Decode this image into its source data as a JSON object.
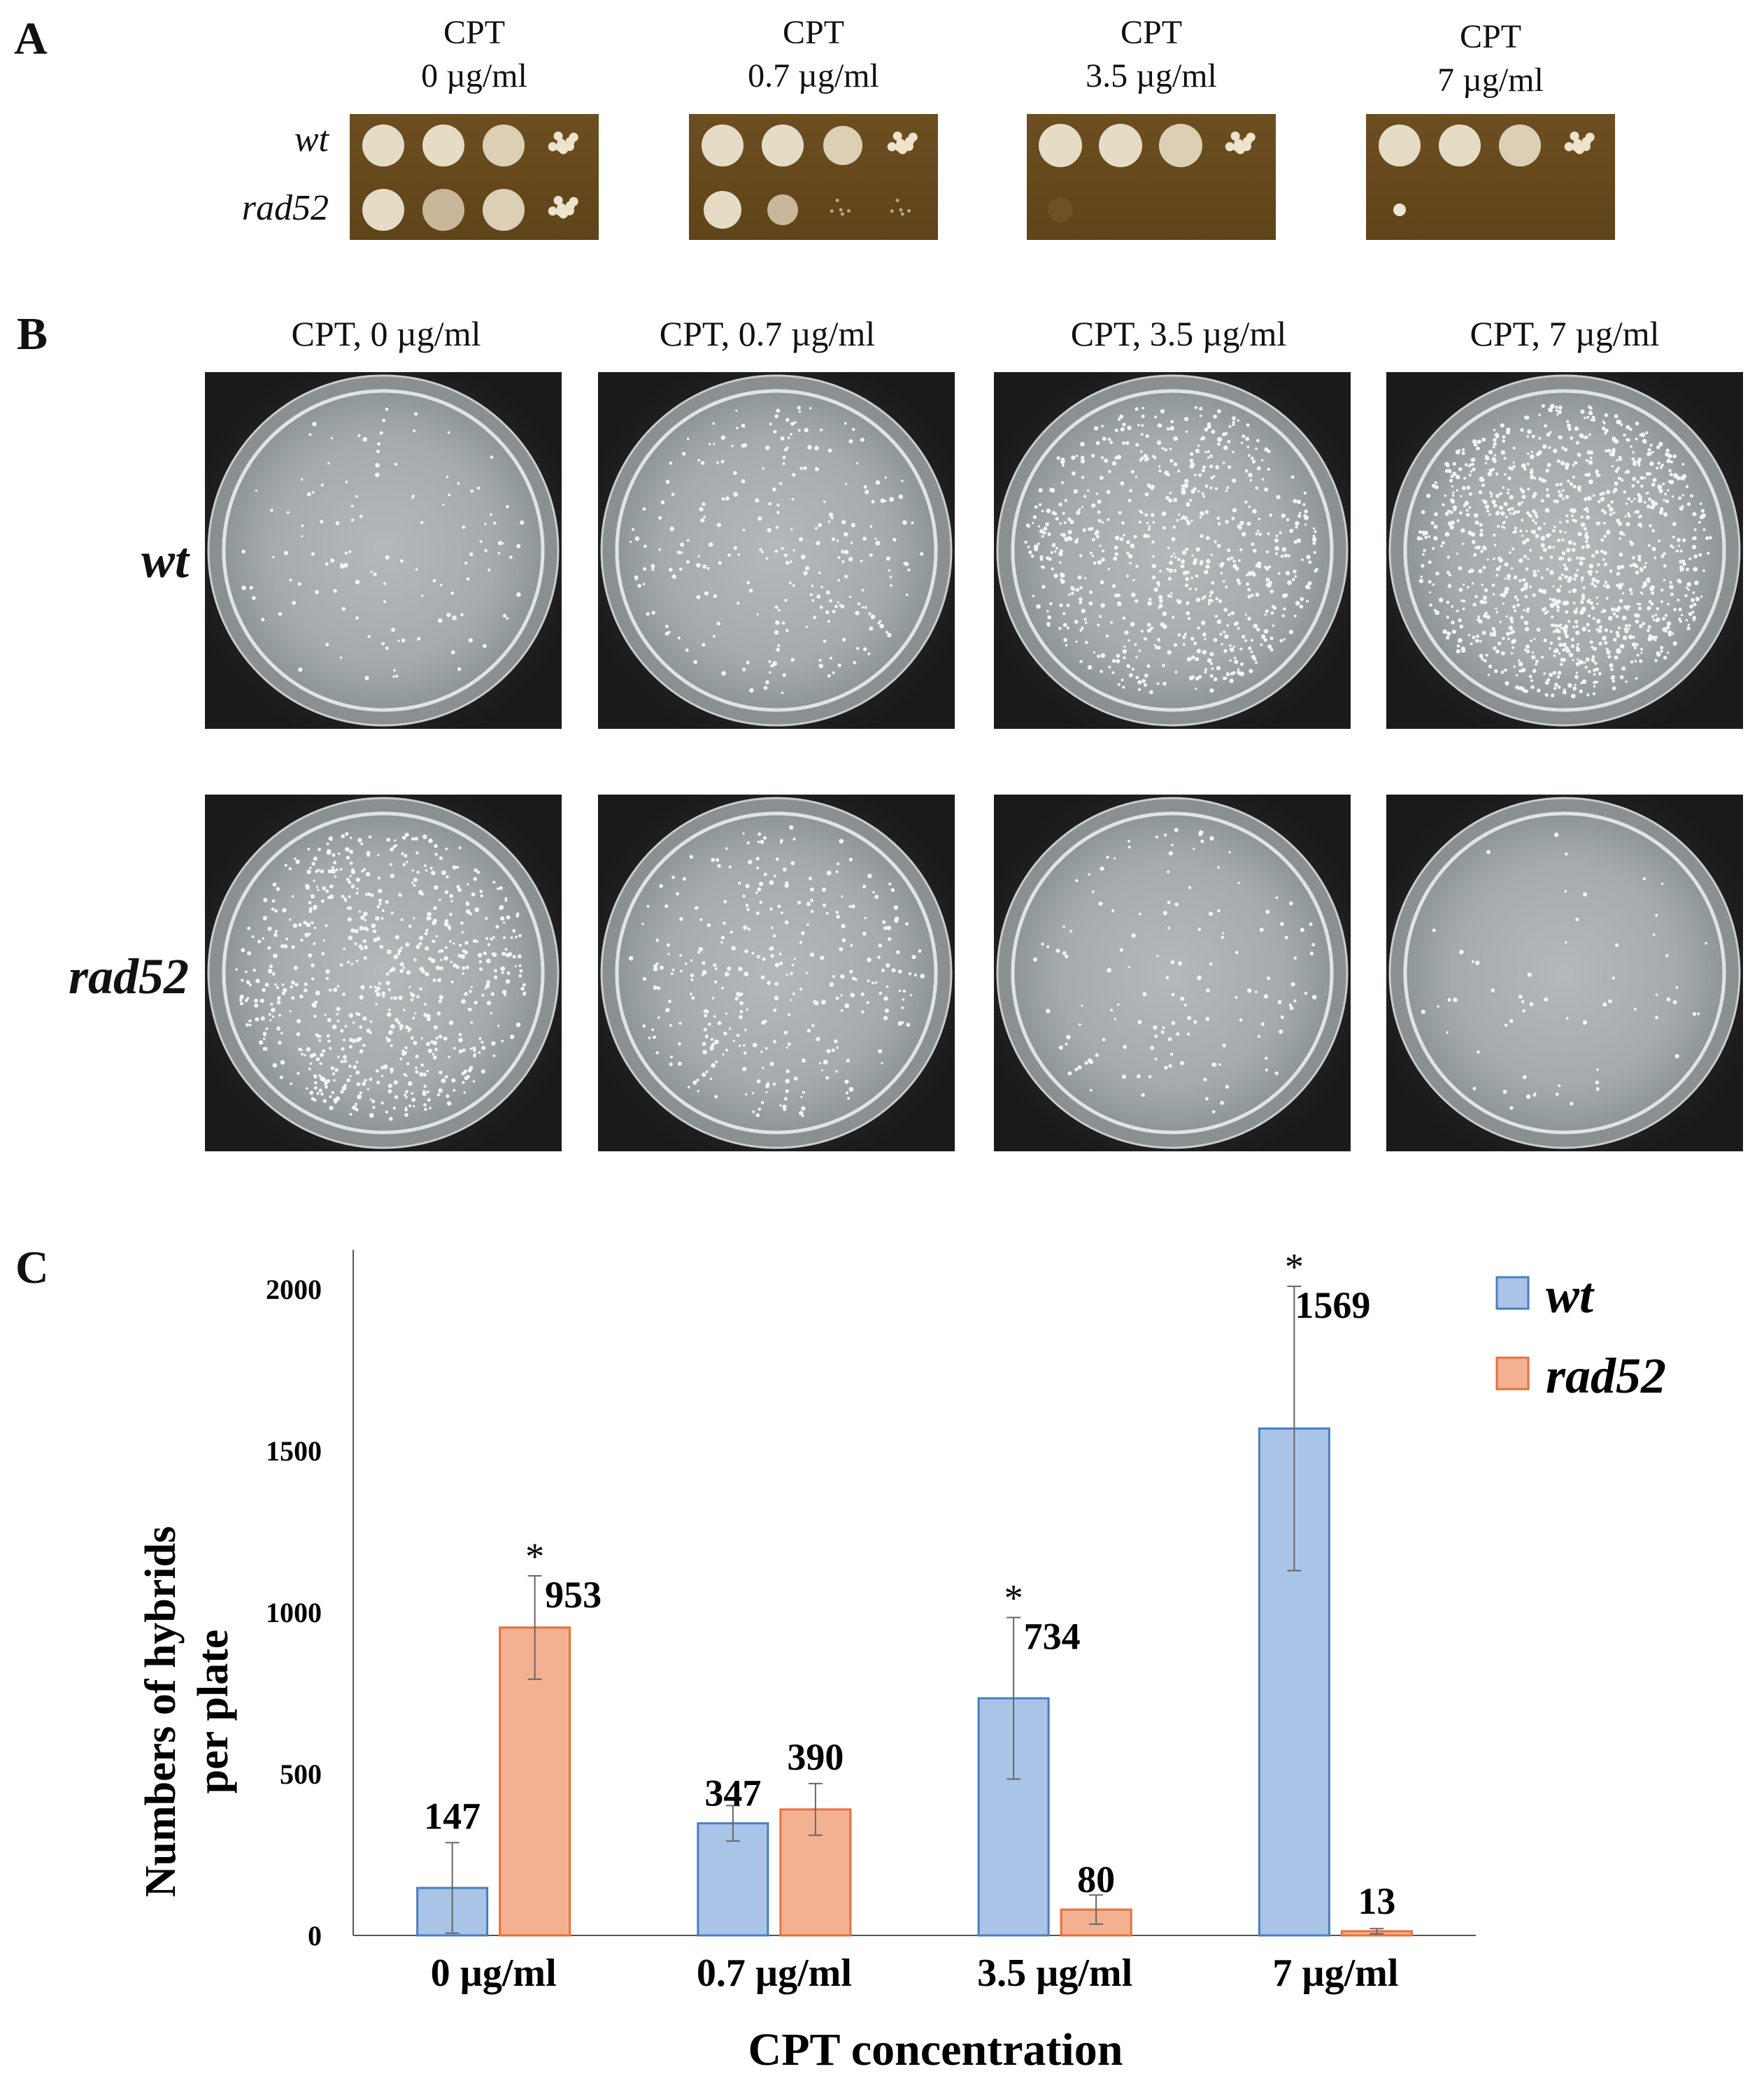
{
  "panel_a": {
    "letter": "A",
    "columns": [
      {
        "line1": "CPT",
        "line2": "0 µg/ml"
      },
      {
        "line1": "CPT",
        "line2": "0.7 µg/ml"
      },
      {
        "line1": "CPT",
        "line2": "3.5 µg/ml"
      },
      {
        "line1": "CPT",
        "line2": "7 µg/ml"
      }
    ],
    "rows": [
      "wt",
      "rad52"
    ]
  },
  "panel_b": {
    "letter": "B",
    "columns": [
      "CPT, 0 µg/ml",
      "CPT, 0.7 µg/ml",
      "CPT, 3.5 µg/ml",
      "CPT,  7 µg/ml"
    ],
    "rows": [
      "wt",
      "rad52"
    ]
  },
  "panel_c": {
    "letter": "C"
  },
  "chart_data": {
    "type": "bar",
    "categories": [
      "0 µg/ml",
      "0.7 µg/ml",
      "3.5 µg/ml",
      "7 µg/ml"
    ],
    "series": [
      {
        "name": "wt",
        "values": [
          147,
          347,
          734,
          1569
        ],
        "errors": [
          140,
          55,
          250,
          440
        ],
        "significant": [
          false,
          false,
          true,
          true
        ],
        "color": "#a9c4e6"
      },
      {
        "name": "rad52",
        "values": [
          953,
          390,
          80,
          13
        ],
        "errors": [
          160,
          80,
          45,
          8
        ],
        "significant": [
          true,
          false,
          false,
          false
        ],
        "color": "#f4b191"
      }
    ],
    "ylabel_line1": "Numbers of hybrids",
    "ylabel_line2": "per plate",
    "xlabel": "CPT concentration",
    "ylim": [
      0,
      2100
    ],
    "yticks": [
      0,
      500,
      1000,
      1500,
      2000
    ],
    "legend_position": "top-right",
    "significance_marker": "*"
  },
  "colors": {
    "wt_edge": "#4a7ec0",
    "rad52_edge": "#e8703a",
    "agar_plate": "#64481d",
    "wt_colony": "#e6dcc6"
  }
}
